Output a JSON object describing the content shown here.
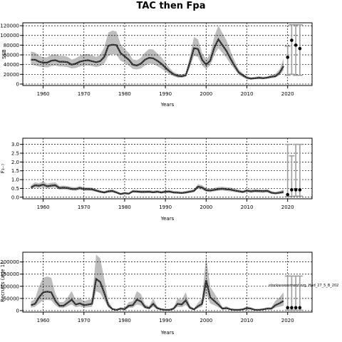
{
  "title": "TAC then Fpa",
  "chart_data": [
    {
      "type": "line",
      "ylabel": "SSB",
      "xlabel": "Years",
      "xlim": [
        1955,
        2026
      ],
      "ylim": [
        -3000,
        126000
      ],
      "xticks": [
        1960,
        1970,
        1980,
        1990,
        2000,
        2010,
        2020
      ],
      "yticks": [
        0,
        20000,
        40000,
        60000,
        80000,
        100000,
        120000
      ],
      "ytick_labels": [
        "0",
        "20000",
        "40000",
        "60000",
        "80000",
        "100000",
        "120000"
      ],
      "grid": true,
      "years": [
        1957,
        1958,
        1959,
        1960,
        1961,
        1962,
        1963,
        1964,
        1965,
        1966,
        1967,
        1968,
        1969,
        1970,
        1971,
        1972,
        1973,
        1974,
        1975,
        1976,
        1977,
        1978,
        1979,
        1980,
        1981,
        1982,
        1983,
        1984,
        1985,
        1986,
        1987,
        1988,
        1989,
        1990,
        1991,
        1992,
        1993,
        1994,
        1995,
        1996,
        1997,
        1998,
        1999,
        2000,
        2001,
        2002,
        2003,
        2004,
        2005,
        2006,
        2007,
        2008,
        2009,
        2010,
        2011,
        2012,
        2013,
        2014,
        2015,
        2016,
        2017,
        2018,
        2019
      ],
      "median": [
        50000,
        50000,
        46000,
        44000,
        44000,
        48000,
        49000,
        46000,
        46000,
        45000,
        40000,
        42000,
        46000,
        48000,
        49000,
        47000,
        45000,
        47000,
        56000,
        79000,
        81000,
        80000,
        64000,
        57000,
        50000,
        40000,
        38000,
        42000,
        50000,
        54000,
        53000,
        48000,
        42000,
        34000,
        26000,
        20000,
        17000,
        16000,
        18000,
        44000,
        74000,
        72000,
        50000,
        40000,
        48000,
        75000,
        92000,
        80000,
        68000,
        52000,
        37000,
        24000,
        18000,
        13000,
        11000,
        12000,
        13000,
        12000,
        13000,
        15000,
        16000,
        23000,
        37000
      ],
      "lower": [
        40000,
        38000,
        36000,
        35000,
        34000,
        37000,
        38000,
        36000,
        36000,
        35000,
        32000,
        33000,
        36000,
        38000,
        38000,
        37000,
        35000,
        37000,
        42000,
        58000,
        62000,
        60000,
        48000,
        44000,
        38000,
        31000,
        30000,
        32000,
        38000,
        42000,
        41000,
        37000,
        32000,
        26000,
        20000,
        16000,
        13000,
        13000,
        15000,
        34000,
        58000,
        56000,
        38000,
        31000,
        38000,
        60000,
        74000,
        64000,
        54000,
        41000,
        30000,
        19000,
        14000,
        10000,
        9000,
        10000,
        10000,
        10000,
        11000,
        12000,
        13000,
        18000,
        28000
      ],
      "upper": [
        67000,
        65000,
        58000,
        55000,
        55000,
        60000,
        61000,
        58000,
        58000,
        56000,
        50000,
        53000,
        58000,
        61000,
        62000,
        59000,
        56000,
        60000,
        76000,
        106000,
        110000,
        108000,
        82000,
        72000,
        64000,
        51000,
        49000,
        54000,
        65000,
        72000,
        71000,
        63000,
        55000,
        44000,
        33000,
        25000,
        21000,
        20000,
        22000,
        57000,
        97000,
        92000,
        64000,
        51000,
        61000,
        98000,
        120000,
        105000,
        90000,
        68000,
        47000,
        30000,
        22000,
        16000,
        14000,
        15000,
        16000,
        15000,
        16000,
        19000,
        21000,
        30000,
        52000
      ],
      "projection": {
        "years": [
          2020,
          2021,
          2022,
          2023
        ],
        "points": [
          55000,
          90000,
          80000,
          73000
        ],
        "lower": [
          18000,
          20000,
          18000,
          18000
        ],
        "upper": [
          78000,
          122000,
          122000,
          122000
        ]
      }
    },
    {
      "type": "line",
      "ylabel": "F₃₋₇",
      "xlabel": "Years",
      "xlim": [
        1955,
        2026
      ],
      "ylim": [
        -0.09,
        3.35
      ],
      "xticks": [
        1960,
        1970,
        1980,
        1990,
        2000,
        2010,
        2020
      ],
      "yticks": [
        0,
        0.5,
        1,
        1.5,
        2,
        2.5,
        3
      ],
      "ytick_labels": [
        "0.0",
        "0.5",
        "1.0",
        "1.5",
        "2.0",
        "2.5",
        "3.0"
      ],
      "grid": true,
      "years": [
        1957,
        1958,
        1959,
        1960,
        1961,
        1962,
        1963,
        1964,
        1965,
        1966,
        1967,
        1968,
        1969,
        1970,
        1971,
        1972,
        1973,
        1974,
        1975,
        1976,
        1977,
        1978,
        1979,
        1980,
        1981,
        1982,
        1983,
        1984,
        1985,
        1986,
        1987,
        1988,
        1989,
        1990,
        1991,
        1992,
        1993,
        1994,
        1995,
        1996,
        1997,
        1998,
        1999,
        2000,
        2001,
        2002,
        2003,
        2004,
        2005,
        2006,
        2007,
        2008,
        2009,
        2010,
        2011,
        2012,
        2013,
        2014,
        2015,
        2016,
        2017,
        2018,
        2019
      ],
      "median": [
        0.55,
        0.68,
        0.65,
        0.72,
        0.62,
        0.66,
        0.68,
        0.52,
        0.54,
        0.52,
        0.47,
        0.46,
        0.52,
        0.46,
        0.46,
        0.45,
        0.38,
        0.31,
        0.27,
        0.33,
        0.35,
        0.27,
        0.18,
        0.23,
        0.2,
        0.33,
        0.32,
        0.3,
        0.3,
        0.31,
        0.28,
        0.31,
        0.27,
        0.31,
        0.32,
        0.27,
        0.26,
        0.24,
        0.27,
        0.31,
        0.36,
        0.6,
        0.55,
        0.4,
        0.38,
        0.42,
        0.46,
        0.48,
        0.45,
        0.43,
        0.38,
        0.34,
        0.3,
        0.37,
        0.33,
        0.36,
        0.35,
        0.34,
        0.36,
        0.26,
        0.22,
        0.26,
        0.3
      ],
      "lower": [
        0.45,
        0.55,
        0.52,
        0.58,
        0.5,
        0.54,
        0.55,
        0.42,
        0.44,
        0.42,
        0.38,
        0.37,
        0.42,
        0.37,
        0.37,
        0.36,
        0.3,
        0.24,
        0.21,
        0.26,
        0.27,
        0.21,
        0.13,
        0.17,
        0.15,
        0.26,
        0.25,
        0.23,
        0.23,
        0.24,
        0.22,
        0.24,
        0.21,
        0.24,
        0.25,
        0.21,
        0.2,
        0.18,
        0.21,
        0.24,
        0.28,
        0.48,
        0.43,
        0.31,
        0.29,
        0.33,
        0.36,
        0.38,
        0.35,
        0.33,
        0.29,
        0.26,
        0.23,
        0.28,
        0.25,
        0.27,
        0.26,
        0.25,
        0.27,
        0.19,
        0.16,
        0.18,
        0.2
      ],
      "upper": [
        0.68,
        0.84,
        0.8,
        0.9,
        0.76,
        0.82,
        0.84,
        0.64,
        0.66,
        0.64,
        0.58,
        0.56,
        0.64,
        0.56,
        0.56,
        0.55,
        0.47,
        0.39,
        0.34,
        0.42,
        0.45,
        0.35,
        0.24,
        0.3,
        0.26,
        0.42,
        0.41,
        0.39,
        0.39,
        0.4,
        0.36,
        0.4,
        0.35,
        0.4,
        0.41,
        0.35,
        0.34,
        0.31,
        0.35,
        0.4,
        0.46,
        0.74,
        0.68,
        0.52,
        0.49,
        0.53,
        0.58,
        0.6,
        0.57,
        0.55,
        0.49,
        0.44,
        0.39,
        0.47,
        0.43,
        0.46,
        0.45,
        0.44,
        0.46,
        0.35,
        0.3,
        0.35,
        0.45
      ],
      "projection": {
        "years": [
          2020,
          2021,
          2022,
          2023
        ],
        "points": [
          0.15,
          0.42,
          0.42,
          0.42
        ],
        "lower": [
          0.03,
          0.05,
          0.06,
          0.06
        ],
        "upper": [
          3.0,
          2.35,
          3.0,
          3.0
        ]
      }
    },
    {
      "type": "line",
      "ylabel": "Recruits (age 1)",
      "xlabel": "Years",
      "xlim": [
        1955,
        2026
      ],
      "ylim": [
        -6000,
        240000
      ],
      "xticks": [
        1960,
        1970,
        1980,
        1990,
        2000,
        2010,
        2020
      ],
      "yticks": [
        0,
        50000,
        100000,
        150000,
        200000
      ],
      "ytick_labels": [
        "0",
        "50000",
        "100000",
        "150000",
        "200000"
      ],
      "grid": true,
      "annotation": "stockassessment.org, Had_27_5_B_202",
      "years": [
        1957,
        1958,
        1959,
        1960,
        1961,
        1962,
        1963,
        1964,
        1965,
        1966,
        1967,
        1968,
        1969,
        1970,
        1971,
        1972,
        1973,
        1974,
        1975,
        1976,
        1977,
        1978,
        1979,
        1980,
        1981,
        1982,
        1983,
        1984,
        1985,
        1986,
        1987,
        1988,
        1989,
        1990,
        1991,
        1992,
        1993,
        1994,
        1995,
        1996,
        1997,
        1998,
        1999,
        2000,
        2001,
        2002,
        2003,
        2004,
        2005,
        2006,
        2007,
        2008,
        2009,
        2010,
        2011,
        2012,
        2013,
        2014,
        2015,
        2016,
        2017,
        2018,
        2019
      ],
      "median": [
        22000,
        28000,
        55000,
        75000,
        78000,
        75000,
        40000,
        20000,
        20000,
        32000,
        45000,
        25000,
        30000,
        22000,
        25000,
        28000,
        130000,
        118000,
        72000,
        22000,
        6000,
        3000,
        8000,
        6000,
        20000,
        22000,
        45000,
        38000,
        15000,
        10000,
        28000,
        10000,
        5000,
        3000,
        3000,
        8000,
        28000,
        25000,
        42000,
        12000,
        5000,
        18000,
        28000,
        125000,
        55000,
        40000,
        25000,
        8000,
        10000,
        5000,
        3000,
        3000,
        5000,
        10000,
        8000,
        3000,
        3000,
        5000,
        8000,
        8000,
        22000,
        30000,
        40000
      ],
      "lower": [
        12000,
        15000,
        30000,
        42000,
        44000,
        42000,
        22000,
        11000,
        11000,
        18000,
        25000,
        14000,
        17000,
        12000,
        14000,
        15000,
        80000,
        72000,
        42000,
        12000,
        3000,
        1500,
        4000,
        3000,
        11000,
        12000,
        25000,
        21000,
        8000,
        5500,
        15000,
        5500,
        2500,
        1500,
        1500,
        4000,
        15000,
        14000,
        23000,
        6500,
        2500,
        10000,
        15000,
        70000,
        30000,
        22000,
        14000,
        4000,
        5500,
        2500,
        1500,
        1500,
        2500,
        5500,
        4000,
        1500,
        1500,
        2500,
        4000,
        4000,
        12000,
        16000,
        20000
      ],
      "upper": [
        38000,
        48000,
        100000,
        135000,
        140000,
        135000,
        70000,
        35000,
        35000,
        55000,
        80000,
        44000,
        52000,
        38000,
        44000,
        48000,
        230000,
        215000,
        130000,
        38000,
        11000,
        6000,
        14000,
        11000,
        35000,
        38000,
        80000,
        68000,
        26000,
        18000,
        50000,
        18000,
        9000,
        6000,
        6000,
        14000,
        50000,
        44000,
        75000,
        21000,
        9000,
        32000,
        50000,
        225000,
        98000,
        72000,
        44000,
        14000,
        18000,
        9000,
        6000,
        6000,
        9000,
        18000,
        14000,
        6000,
        6000,
        9000,
        14000,
        14000,
        40000,
        55000,
        75000
      ],
      "projection": {
        "years": [
          2020,
          2021,
          2022,
          2023
        ],
        "points": [
          12000,
          12000,
          12000,
          12000
        ],
        "lower": [
          2000,
          2000,
          2000,
          2000
        ],
        "upper": [
          142000,
          142000,
          142000,
          142000
        ]
      }
    }
  ]
}
